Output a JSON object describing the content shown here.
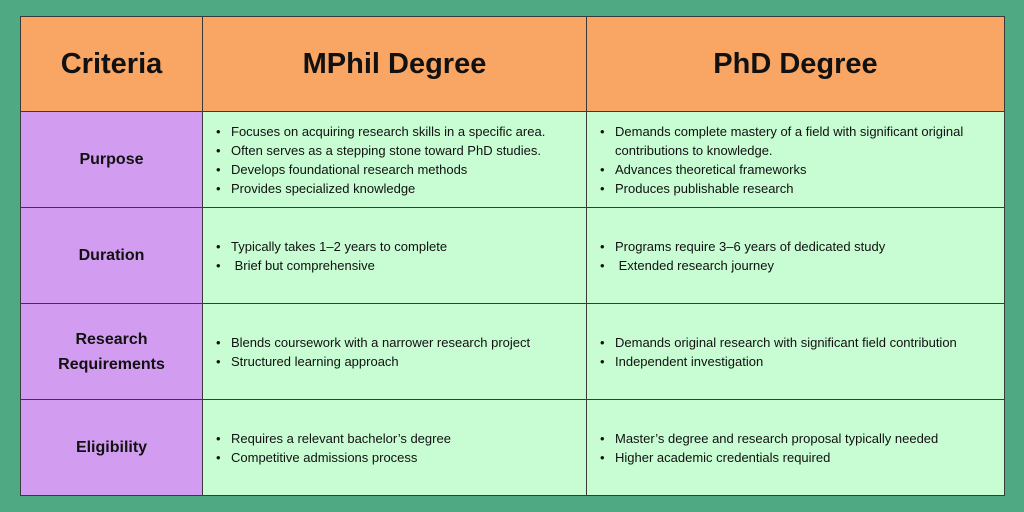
{
  "headers": [
    "Criteria",
    "MPhil Degree",
    "PhD Degree"
  ],
  "rows": [
    {
      "criteria": "Purpose",
      "mphil": [
        "Focuses on acquiring research skills in a specific area.",
        "Often serves as a stepping stone toward PhD studies.",
        "Develops foundational research methods",
        "Provides specialized knowledge"
      ],
      "phd": [
        "Demands complete mastery of a field with significant original contributions to knowledge.",
        "Advances theoretical frameworks",
        "Produces publishable research"
      ]
    },
    {
      "criteria": "Duration",
      "mphil": [
        "Typically takes 1–2 years to complete",
        " Brief but comprehensive"
      ],
      "phd": [
        "Programs require 3–6 years of dedicated study",
        " Extended research journey"
      ]
    },
    {
      "criteria": "Research Requirements",
      "mphil": [
        "Blends coursework with a narrower research project",
        "Structured learning approach"
      ],
      "phd": [
        "Demands original research with significant field contribution",
        "Independent investigation"
      ]
    },
    {
      "criteria": "Eligibility",
      "mphil": [
        "Requires a relevant bachelor’s degree",
        "Competitive admissions process"
      ],
      "phd": [
        "Master’s degree and research proposal typically needed",
        "Higher academic credentials required"
      ]
    }
  ]
}
